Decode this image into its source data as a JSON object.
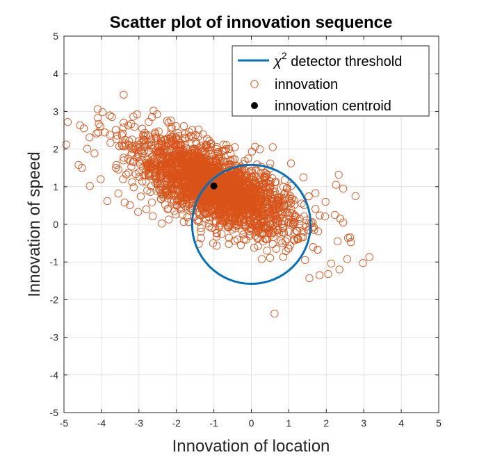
{
  "chart_data": {
    "type": "scatter",
    "title": "Scatter plot of innovation sequence",
    "xlabel": "Innovation of location",
    "ylabel": "Innovation of speed",
    "xlim": [
      -5,
      5
    ],
    "ylim": [
      -5,
      5
    ],
    "xticks": [
      -5,
      -4,
      -3,
      -2,
      -1,
      0,
      1,
      2,
      3,
      4,
      5
    ],
    "yticks": [
      -5,
      -4,
      -3,
      -2,
      -1,
      0,
      1,
      2,
      3,
      4,
      5
    ],
    "grid": true,
    "legend_position": "top-right",
    "colors": {
      "threshold": "#0072BD",
      "innovation": "#D95319",
      "centroid": "#000000",
      "grid": "#e3e3e3",
      "axis": "#262626"
    },
    "series": [
      {
        "name": "χ2 detector threshold",
        "legend_main": "χ",
        "legend_sup": "2",
        "legend_rest": " detector threshold",
        "type": "line",
        "shape": "ellipse",
        "center": [
          0,
          0
        ],
        "radii": [
          1.58,
          1.58
        ]
      },
      {
        "name": "innovation",
        "type": "scatter",
        "marker": "open-circle",
        "count": 2400,
        "mean": [
          -1,
          1
        ],
        "std": [
          1.02,
          0.62
        ],
        "correlation": -0.68,
        "points": [
          [
            -4.9,
            2.72
          ],
          [
            -4.94,
            2.12
          ],
          [
            -4.57,
            2.63
          ],
          [
            -4.47,
            2.55
          ],
          [
            -4.61,
            1.58
          ],
          [
            -4.52,
            1.5
          ],
          [
            -4.1,
            3.06
          ],
          [
            -3.97,
            2.98
          ],
          [
            -4.38,
            2.01
          ],
          [
            -4.31,
            1.02
          ],
          [
            -4.02,
            1.2
          ],
          [
            -3.91,
            2.44
          ],
          [
            -3.84,
            0.62
          ],
          [
            -3.72,
            2.85
          ],
          [
            -3.55,
            0.82
          ],
          [
            -3.41,
            2.7
          ],
          [
            -3.24,
            0.51
          ],
          [
            -3.05,
            2.92
          ],
          [
            -3.02,
            0.33
          ],
          [
            -2.65,
            2.85
          ],
          [
            -2.95,
            0.74
          ],
          [
            -2.21,
            2.7
          ],
          [
            -2.3,
            0.52
          ],
          [
            -1.8,
            2.61
          ],
          [
            -1.62,
            2.35
          ],
          [
            -1.12,
            2.22
          ],
          [
            -0.74,
            2.12
          ],
          [
            -0.44,
            2.05
          ],
          [
            0.1,
            2.06
          ],
          [
            0.57,
            2.05
          ],
          [
            1.06,
            1.62
          ],
          [
            1.39,
            1.25
          ],
          [
            1.71,
            0.83
          ],
          [
            1.98,
            0.6
          ],
          [
            2.33,
            1.32
          ],
          [
            2.26,
            1.05
          ],
          [
            2.45,
            0.95
          ],
          [
            2.78,
            0.75
          ],
          [
            2.23,
            0.25
          ],
          [
            2.45,
            0.05
          ],
          [
            2.3,
            -0.45
          ],
          [
            2.58,
            -0.36
          ],
          [
            2.56,
            -0.92
          ],
          [
            2.98,
            -1.03
          ],
          [
            3.15,
            -0.87
          ],
          [
            2.13,
            -1.04
          ],
          [
            1.82,
            -1.35
          ],
          [
            1.55,
            -1.43
          ],
          [
            2.35,
            -1.2
          ],
          [
            2.05,
            -1.32
          ],
          [
            0.62,
            -2.37
          ],
          [
            -1.4,
            -0.52
          ],
          [
            -1.02,
            -0.5
          ],
          [
            -0.6,
            -0.52
          ],
          [
            -0.28,
            -0.55
          ],
          [
            0.18,
            -0.58
          ],
          [
            0.42,
            -0.7
          ],
          [
            0.28,
            -0.92
          ],
          [
            -0.52,
            -0.14
          ],
          [
            -0.92,
            -0.24
          ],
          [
            -1.67,
            0.06
          ],
          [
            -2.39,
            0.02
          ],
          [
            -2.8,
            0.4
          ],
          [
            -3.38,
            0.58
          ],
          [
            -2.63,
            0.22
          ],
          [
            -0.82,
            1.02
          ]
        ]
      },
      {
        "name": "innovation centroid",
        "type": "scatter",
        "marker": "filled-circle",
        "points": [
          [
            -1.0,
            1.02
          ]
        ]
      }
    ]
  }
}
